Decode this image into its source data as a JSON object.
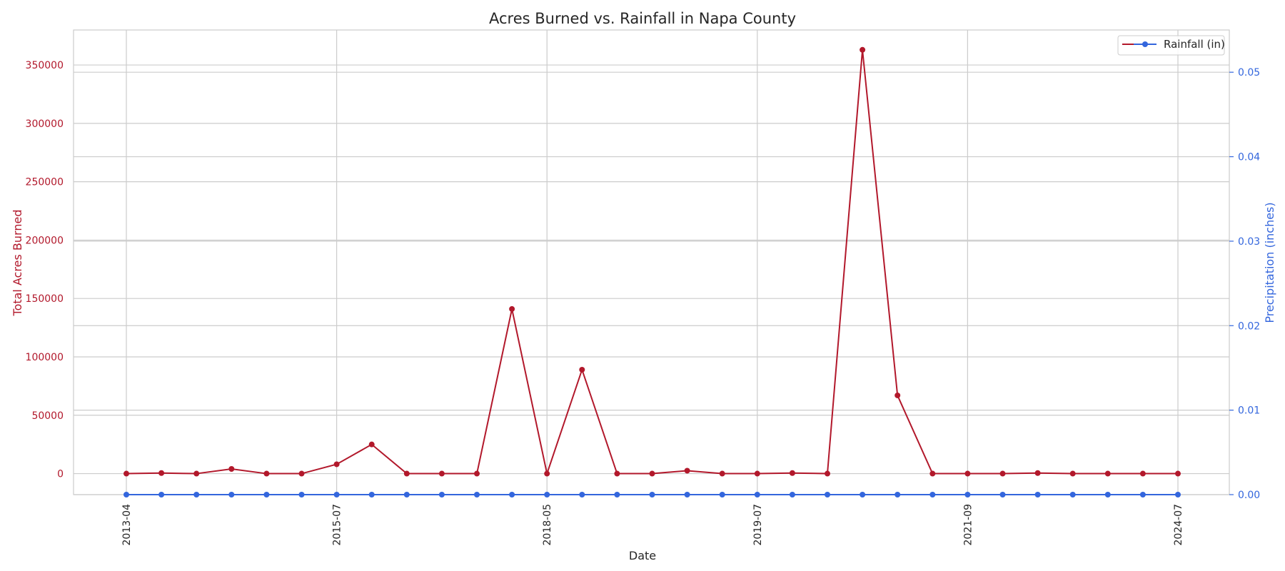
{
  "chart_data": {
    "type": "line",
    "title": "Acres Burned vs. Rainfall in Napa County",
    "xlabel": "Date",
    "ylabel_left": "Total Acres Burned",
    "ylabel_right": "Precipitation (inches)",
    "x_tick_labels": [
      "2013-04",
      "2015-07",
      "2018-05",
      "2019-07",
      "2021-09",
      "2024-07"
    ],
    "left_ylim": [
      -18000,
      380000
    ],
    "left_yticks": [
      0,
      50000,
      100000,
      150000,
      200000,
      250000,
      300000,
      350000
    ],
    "right_ylim": [
      0,
      0.055
    ],
    "right_yticks": [
      "0.00",
      "0.01",
      "0.02",
      "0.03",
      "0.04",
      "0.05"
    ],
    "grid": true,
    "legend_position": "top-right",
    "series": [
      {
        "name": "",
        "axis": "left",
        "color": "#b2182b",
        "values": [
          0,
          500,
          0,
          4000,
          0,
          0,
          8000,
          25000,
          0,
          0,
          0,
          141000,
          0,
          89000,
          0,
          0,
          2500,
          0,
          0,
          500,
          0,
          363000,
          67000,
          0,
          0,
          0,
          500,
          0,
          0,
          0,
          0
        ]
      },
      {
        "name": "Rainfall (in)",
        "axis": "right",
        "color": "#3366dd",
        "values": [
          0,
          0,
          0,
          0,
          0,
          0,
          0,
          0,
          0,
          0,
          0,
          0,
          0,
          0,
          0,
          0,
          0,
          0,
          0,
          0,
          0,
          0,
          0,
          0,
          0,
          0,
          0,
          0,
          0,
          0,
          0
        ]
      }
    ]
  }
}
